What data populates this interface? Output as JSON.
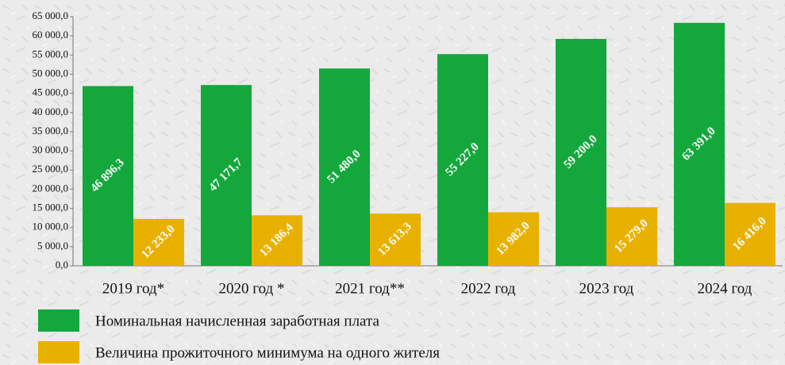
{
  "chart_data": {
    "type": "bar",
    "categories": [
      "2019 год*",
      "2020 год *",
      "2021 год**",
      "2022 год",
      "2023 год",
      "2024 год"
    ],
    "series": [
      {
        "name": "Номинальная начисленная заработная плата",
        "color": "#14a83c",
        "values": [
          46896.3,
          47171.7,
          51480.0,
          55227.0,
          59200.0,
          63391.0
        ],
        "value_labels": [
          "46 896,3",
          "47 171,7",
          "51 480,0",
          "55 227,0",
          "59 200,0",
          "63 391,0"
        ]
      },
      {
        "name": "Величина прожиточного минимума на одного жителя",
        "color": "#e8b100",
        "values": [
          12233.0,
          13186.4,
          13613.3,
          13982.0,
          15279.0,
          16416.0
        ],
        "value_labels": [
          "12 233,0",
          "13 186,4",
          "13 613,3",
          "13 982,0",
          "15 279,0",
          "16 416,0"
        ]
      }
    ],
    "ylim": [
      0,
      65000
    ],
    "yticks": [
      {
        "value": 0,
        "label": "0,0"
      },
      {
        "value": 5000,
        "label": "5 000,0"
      },
      {
        "value": 10000,
        "label": "10 000,0"
      },
      {
        "value": 15000,
        "label": "15 000,0"
      },
      {
        "value": 20000,
        "label": "20 000,0"
      },
      {
        "value": 25000,
        "label": "25 000,0"
      },
      {
        "value": 30000,
        "label": "30 000,0"
      },
      {
        "value": 35000,
        "label": "35 000,0"
      },
      {
        "value": 40000,
        "label": "40 000,0"
      },
      {
        "value": 45000,
        "label": "45 000,0"
      },
      {
        "value": 50000,
        "label": "50 000,0"
      },
      {
        "value": 55000,
        "label": "55 000,0"
      },
      {
        "value": 60000,
        "label": "60 000,0"
      },
      {
        "value": 65000,
        "label": "65 000,0"
      }
    ]
  }
}
